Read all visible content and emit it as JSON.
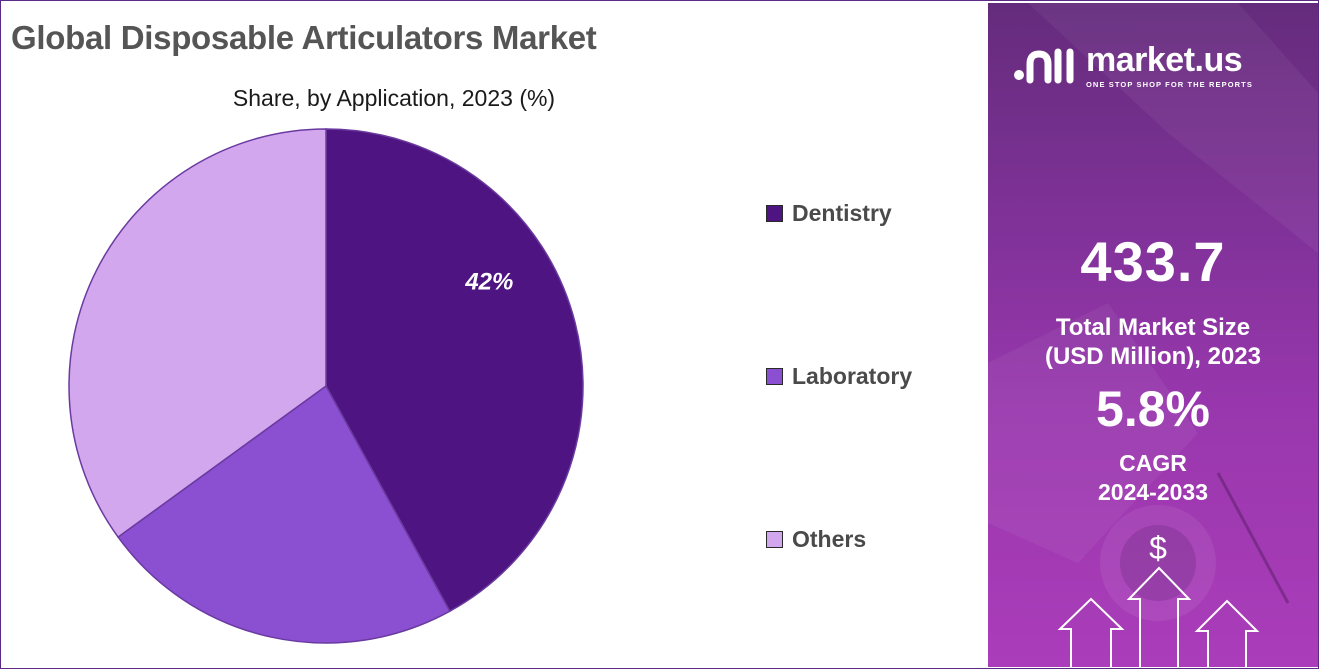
{
  "chart_data": {
    "type": "pie",
    "title": "Global Disposable Articulators Market",
    "subtitle": "Share, by Application, 2023 (%)",
    "categories": [
      "Dentistry",
      "Laboratory",
      "Others"
    ],
    "values": [
      42,
      23,
      35
    ],
    "colors": [
      "#4e1482",
      "#8b4fd1",
      "#d3a7ee"
    ],
    "data_labels": [
      "42%",
      "",
      ""
    ],
    "legend_position": "right"
  },
  "panel": {
    "brand": "market.us",
    "tagline": "ONE STOP SHOP FOR THE REPORTS",
    "market_size_value": "433.7",
    "market_size_label_1": "Total Market Size",
    "market_size_label_2": "(USD Million), 2023",
    "cagr_value": "5.8%",
    "cagr_label_1": "CAGR",
    "cagr_label_2": "2024-2033",
    "currency_symbol": "$"
  }
}
